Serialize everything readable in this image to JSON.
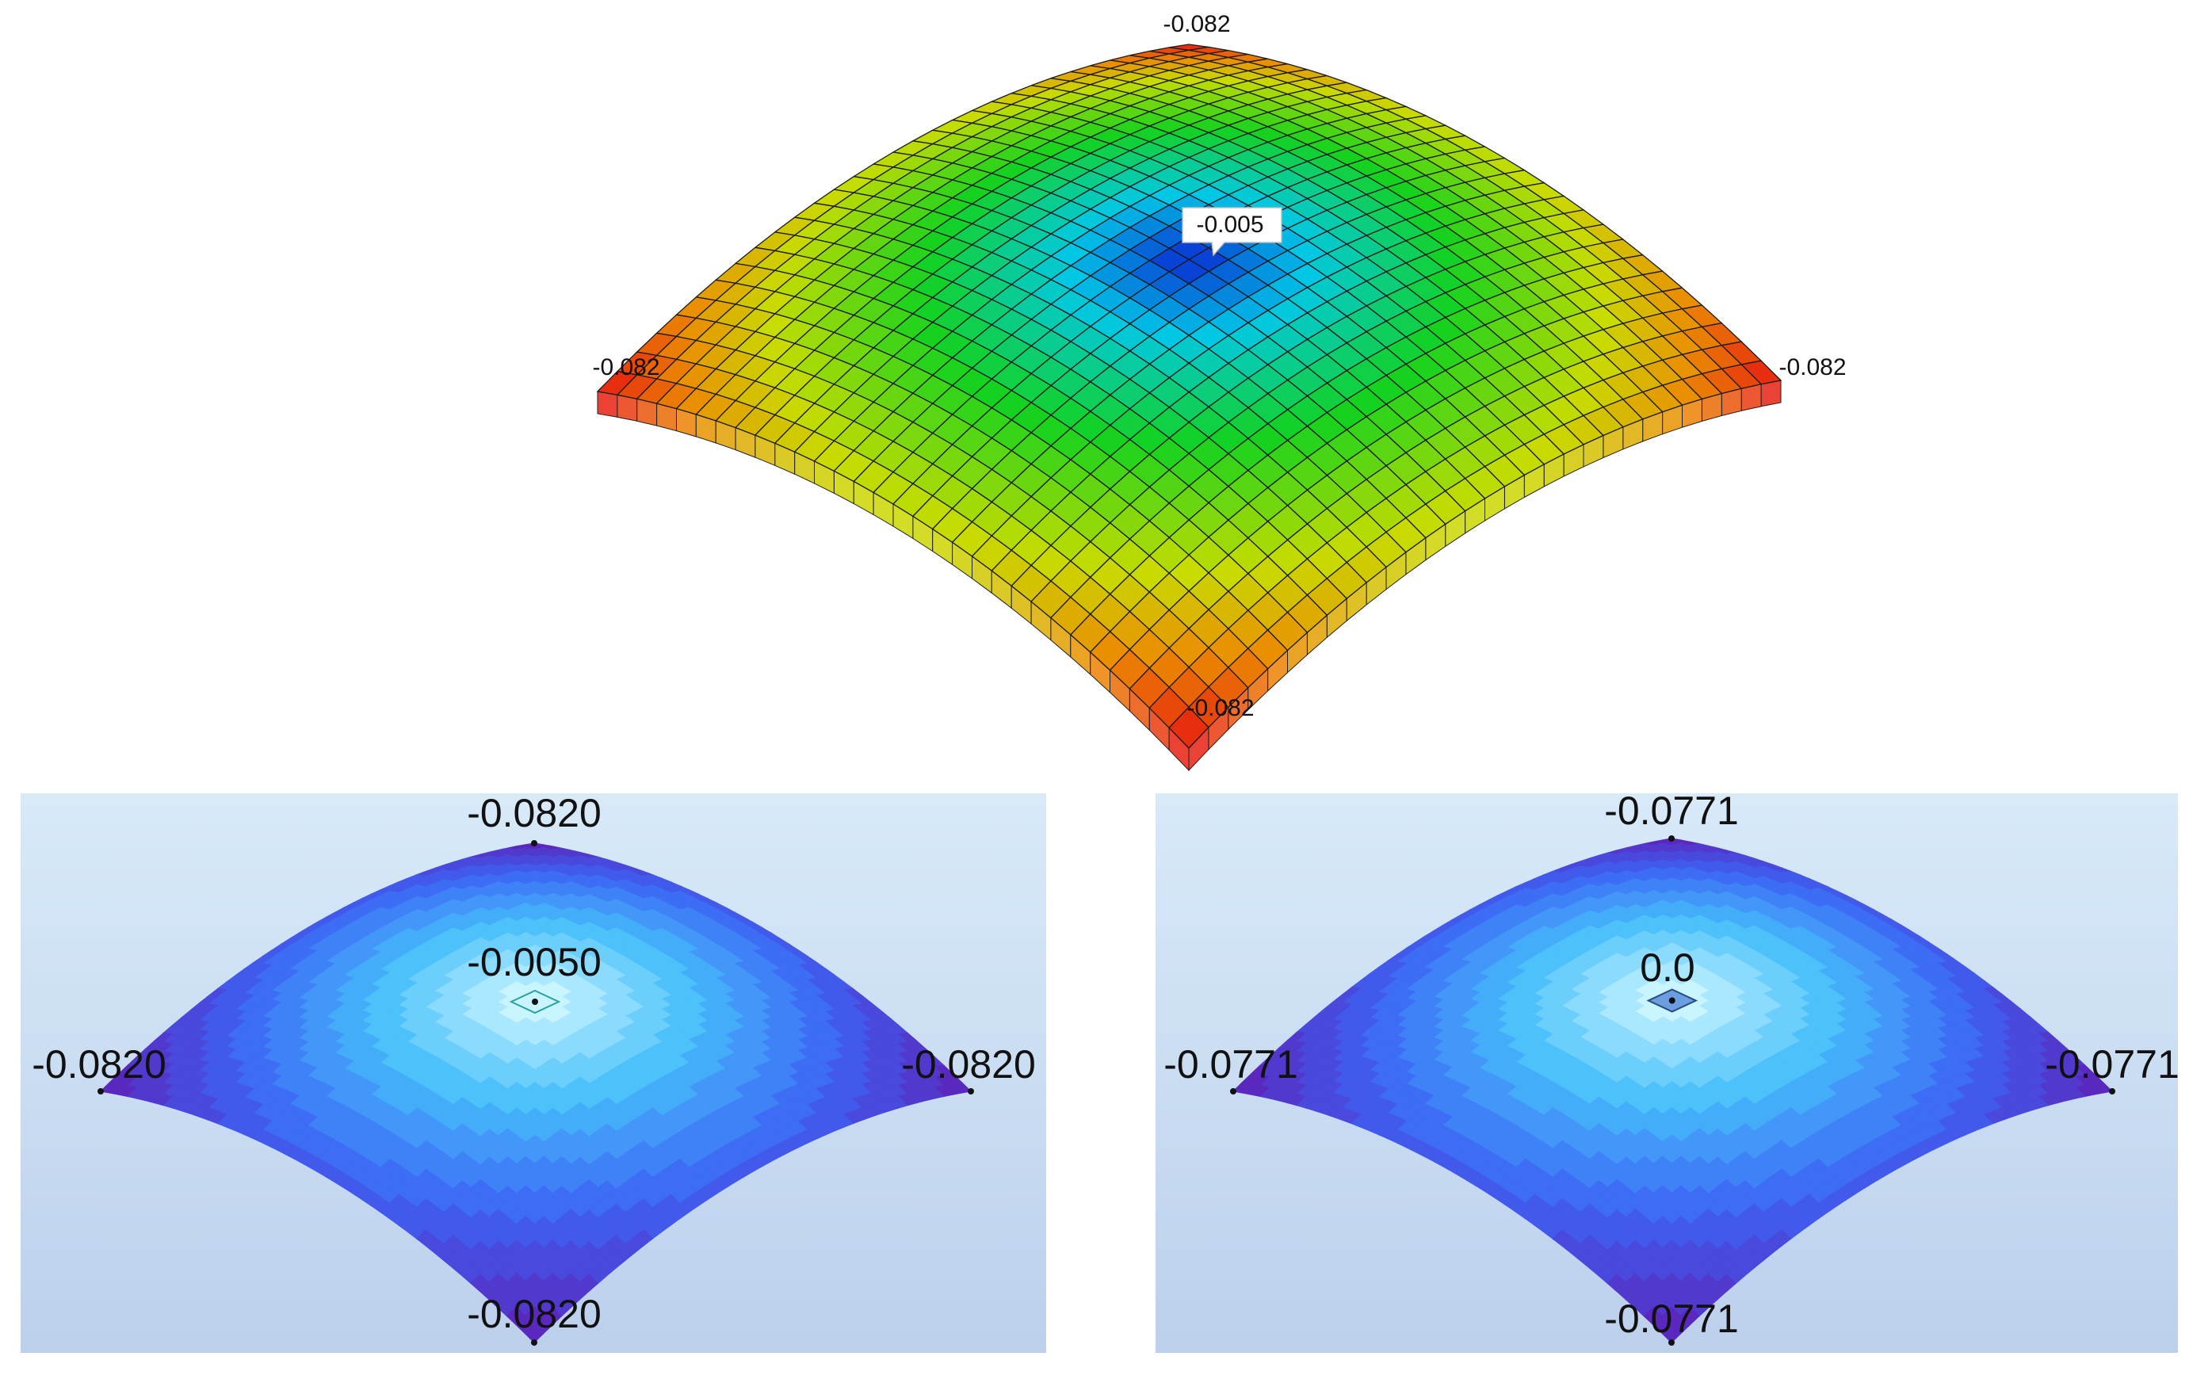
{
  "panels": [
    {
      "labels": {
        "top": "-0.082",
        "center": "-0.005",
        "left": "-0.082",
        "right": "-0.082",
        "bottom": "-0.082"
      }
    },
    {
      "labels": {
        "top": "-0.0820",
        "center": "-0.0050",
        "left": "-0.0820",
        "right": "-0.0820",
        "bottom": "-0.0820"
      }
    },
    {
      "labels": {
        "top": "-0.0771",
        "center": "0.0",
        "left": "-0.0771",
        "right": "-0.0771",
        "bottom": "-0.0771"
      }
    }
  ]
}
